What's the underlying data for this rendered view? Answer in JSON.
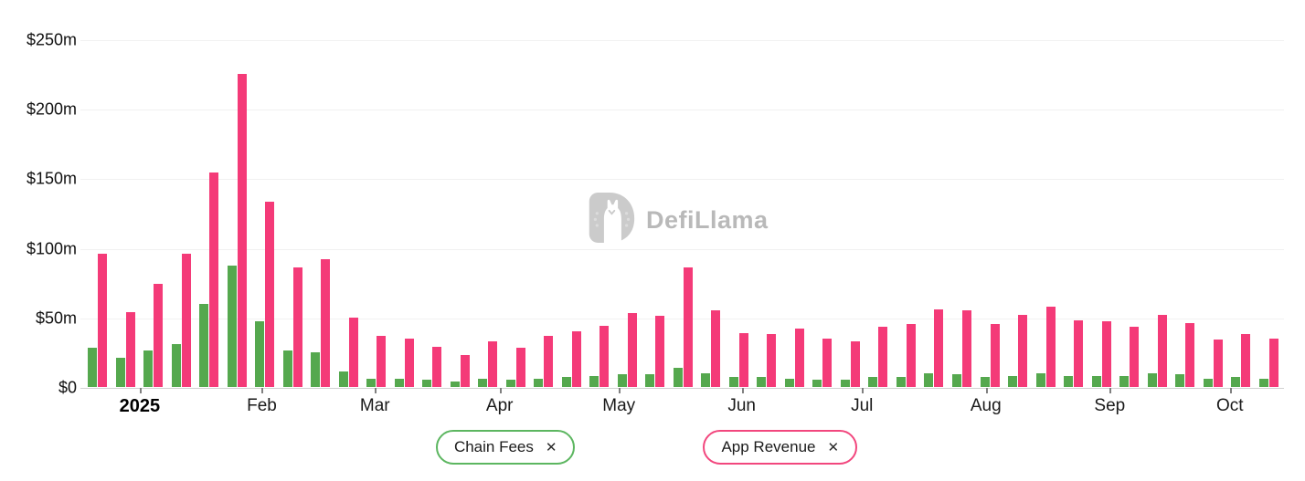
{
  "watermark": {
    "icon": "defillama-llama-logo",
    "text": "DefiLlama"
  },
  "legend": {
    "items": [
      {
        "label": "Chain Fees",
        "color": "#5cb660",
        "close_icon": "✕"
      },
      {
        "label": "App Revenue",
        "color": "#f2477e",
        "close_icon": "✕"
      }
    ]
  },
  "chart_data": {
    "type": "bar",
    "title": "",
    "xlabel": "",
    "ylabel": "",
    "x_unit": "weekly bars, Jan 2025 - Oct 2025",
    "ylim": [
      0,
      250
    ],
    "y_unit": "$m",
    "grid": "horizontal",
    "legend_position": "bottom",
    "y_ticks": [
      "$0",
      "$50m",
      "$100m",
      "$150m",
      "$200m",
      "$250m"
    ],
    "y_tick_values": [
      0,
      50,
      100,
      150,
      200,
      250
    ],
    "x_ticks": [
      {
        "label": "2025",
        "pos": 4.93,
        "bold": true
      },
      {
        "label": "Feb",
        "pos": 15.07,
        "bold": false
      },
      {
        "label": "Mar",
        "pos": 24.47,
        "bold": false
      },
      {
        "label": "Apr",
        "pos": 34.83,
        "bold": false
      },
      {
        "label": "May",
        "pos": 44.74,
        "bold": false
      },
      {
        "label": "Jun",
        "pos": 54.95,
        "bold": false
      },
      {
        "label": "Jul",
        "pos": 64.94,
        "bold": false
      },
      {
        "label": "Aug",
        "pos": 75.23,
        "bold": false
      },
      {
        "label": "Sep",
        "pos": 85.52,
        "bold": false
      },
      {
        "label": "Oct",
        "pos": 95.5,
        "bold": false
      }
    ],
    "series": [
      {
        "name": "Chain Fees",
        "color": "#55a84e",
        "values": [
          28,
          21,
          26,
          31,
          60,
          87,
          47,
          26,
          25,
          11,
          6,
          6,
          5,
          4,
          6,
          5,
          6,
          7,
          8,
          9,
          9,
          14,
          10,
          7,
          7,
          6,
          5,
          5,
          7,
          7,
          10,
          9,
          7,
          8,
          10,
          8,
          8,
          8,
          10,
          9,
          6,
          7,
          6
        ]
      },
      {
        "name": "App Revenue",
        "color": "#f43a78",
        "values": [
          96,
          54,
          74,
          96,
          154,
          225,
          133,
          86,
          92,
          50,
          37,
          35,
          29,
          23,
          33,
          28,
          37,
          40,
          44,
          53,
          51,
          86,
          55,
          39,
          38,
          42,
          35,
          33,
          43,
          45,
          56,
          55,
          45,
          52,
          58,
          48,
          47,
          43,
          52,
          46,
          34,
          38,
          35
        ]
      }
    ]
  }
}
